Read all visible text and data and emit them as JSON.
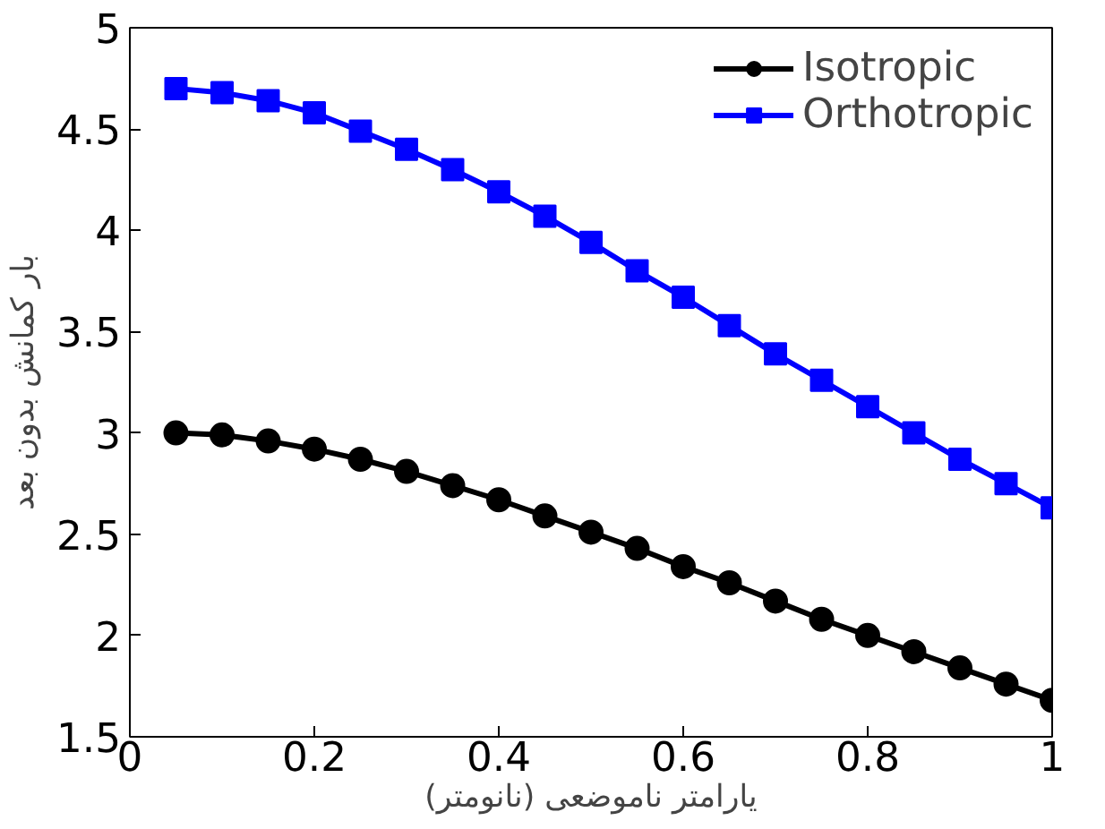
{
  "chart_data": {
    "type": "line",
    "xlabel": "یارامتر ناموضعی (نانومتر)",
    "ylabel": "بار کمانش بدون بعد",
    "x": [
      0.05,
      0.1,
      0.15,
      0.2,
      0.25,
      0.3,
      0.35,
      0.4,
      0.45,
      0.5,
      0.55,
      0.6,
      0.65,
      0.7,
      0.75,
      0.8,
      0.85,
      0.9,
      0.95,
      1.0
    ],
    "series": [
      {
        "name": "Isotropic",
        "color": "#000000",
        "marker": "circle",
        "values": [
          3.0,
          2.99,
          2.96,
          2.92,
          2.87,
          2.81,
          2.74,
          2.67,
          2.59,
          2.51,
          2.43,
          2.34,
          2.26,
          2.17,
          2.08,
          2.0,
          1.92,
          1.84,
          1.76,
          1.68
        ]
      },
      {
        "name": "Orthotropic",
        "color": "#0000ff",
        "marker": "square",
        "values": [
          4.7,
          4.68,
          4.64,
          4.58,
          4.49,
          4.4,
          4.3,
          4.19,
          4.07,
          3.94,
          3.8,
          3.67,
          3.53,
          3.39,
          3.26,
          3.13,
          3.0,
          2.87,
          2.75,
          2.63
        ]
      }
    ],
    "xlim": [
      0,
      1
    ],
    "ylim": [
      1.5,
      5
    ],
    "xticks": [
      0,
      0.2,
      0.4,
      0.6,
      0.8,
      1
    ],
    "yticks": [
      1.5,
      2,
      2.5,
      3,
      3.5,
      4,
      4.5,
      5
    ],
    "grid": false,
    "legend": "top right",
    "line_style": "solid"
  }
}
